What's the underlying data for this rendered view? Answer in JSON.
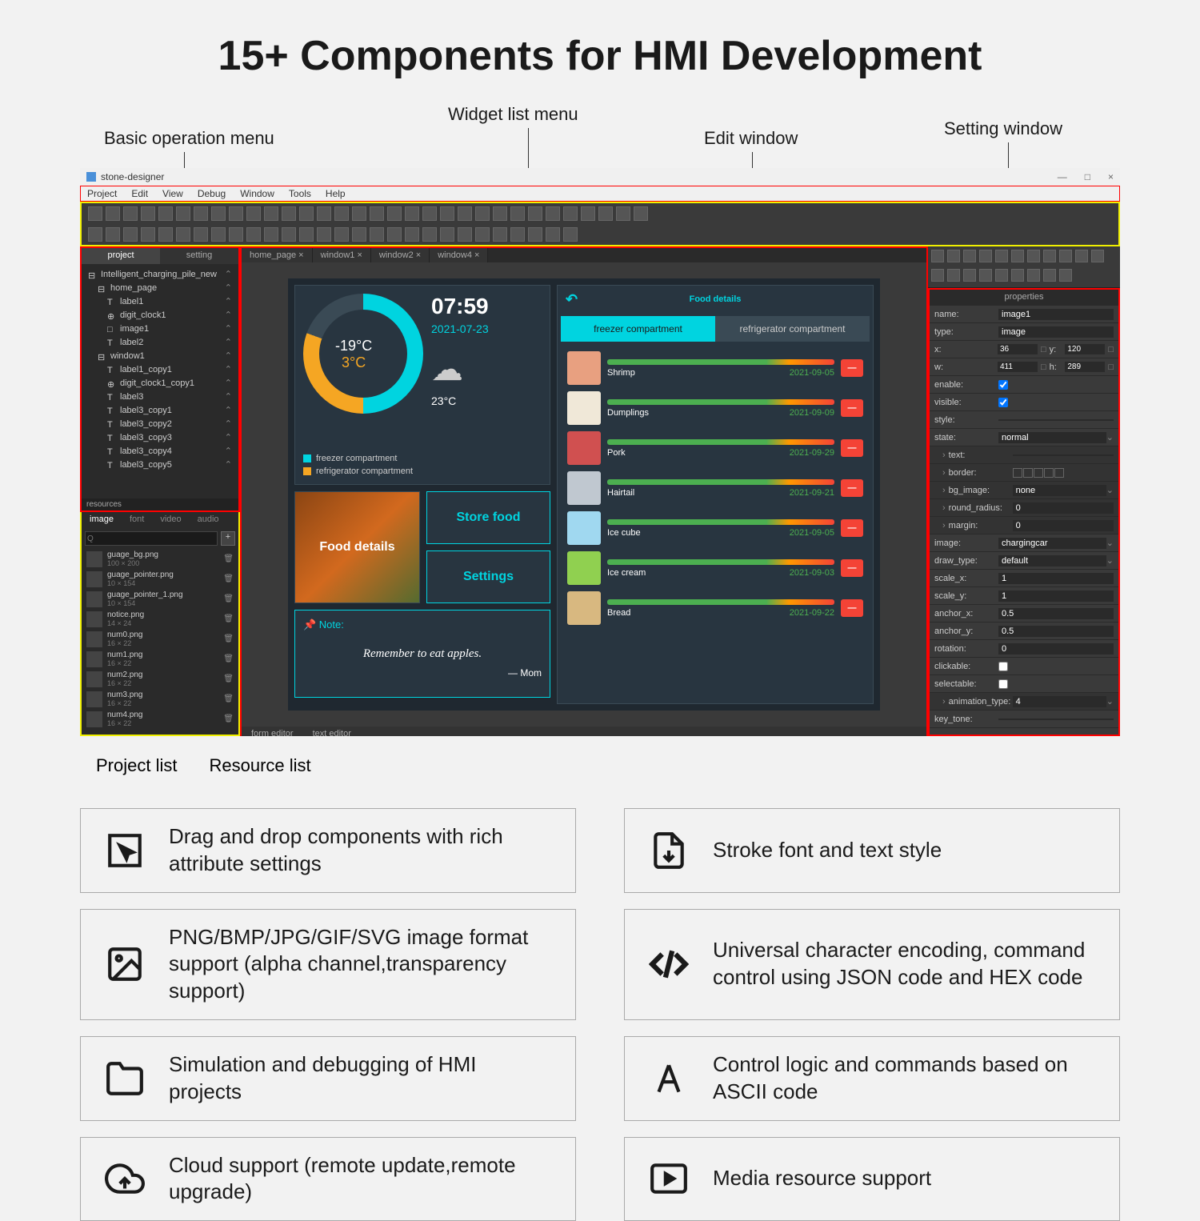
{
  "page_title": "15+ Components for HMI Development",
  "annotations": {
    "basic_op": "Basic operation menu",
    "widget_list": "Widget list menu",
    "edit_window": "Edit window",
    "setting_window": "Setting window",
    "project_list": "Project list",
    "resource_list": "Resource list"
  },
  "app": {
    "title": "stone-designer",
    "menus": [
      "Project",
      "Edit",
      "View",
      "Debug",
      "Window",
      "Tools",
      "Help"
    ]
  },
  "project_panel": {
    "tabs": [
      "project",
      "setting"
    ],
    "label_resources": "resources",
    "tree": [
      {
        "icon": "⊟",
        "label": "Intelligent_charging_pile_new",
        "indent": 0
      },
      {
        "icon": "⊟",
        "label": "home_page",
        "indent": 1
      },
      {
        "icon": "T",
        "label": "label1",
        "indent": 2
      },
      {
        "icon": "⊕",
        "label": "digit_clock1",
        "indent": 2
      },
      {
        "icon": "□",
        "label": "image1",
        "indent": 2
      },
      {
        "icon": "T",
        "label": "label2",
        "indent": 2
      },
      {
        "icon": "⊟",
        "label": "window1",
        "indent": 1
      },
      {
        "icon": "T",
        "label": "label1_copy1",
        "indent": 2
      },
      {
        "icon": "⊕",
        "label": "digit_clock1_copy1",
        "indent": 2
      },
      {
        "icon": "T",
        "label": "label3",
        "indent": 2
      },
      {
        "icon": "T",
        "label": "label3_copy1",
        "indent": 2
      },
      {
        "icon": "T",
        "label": "label3_copy2",
        "indent": 2
      },
      {
        "icon": "T",
        "label": "label3_copy3",
        "indent": 2
      },
      {
        "icon": "T",
        "label": "label3_copy4",
        "indent": 2
      },
      {
        "icon": "T",
        "label": "label3_copy5",
        "indent": 2
      }
    ]
  },
  "resource_panel": {
    "tabs": [
      "image",
      "font",
      "video",
      "audio"
    ],
    "search_placeholder": "Q",
    "items": [
      {
        "name": "guage_bg.png",
        "size": "100 × 200"
      },
      {
        "name": "guage_pointer.png",
        "size": "10 × 154"
      },
      {
        "name": "guage_pointer_1.png",
        "size": "10 × 154"
      },
      {
        "name": "notice.png",
        "size": "14 × 24"
      },
      {
        "name": "num0.png",
        "size": "16 × 22"
      },
      {
        "name": "num1.png",
        "size": "16 × 22"
      },
      {
        "name": "num2.png",
        "size": "16 × 22"
      },
      {
        "name": "num3.png",
        "size": "16 × 22"
      },
      {
        "name": "num4.png",
        "size": "16 × 22"
      }
    ]
  },
  "doc_tabs": [
    "home_page ×",
    "window1 ×",
    "window2 ×",
    "window4 ×"
  ],
  "bottom_tabs": [
    "form editor",
    "text editor"
  ],
  "hmi": {
    "gauge": {
      "temp1": "-19°C",
      "temp2": "3°C",
      "time": "07:59",
      "date": "2021-07-23",
      "weather_temp": "23°C"
    },
    "legend": [
      {
        "color": "#00d4e0",
        "label": "freezer compartment"
      },
      {
        "color": "#f5a623",
        "label": "refrigerator compartment"
      }
    ],
    "tiles": {
      "food_details": "Food details",
      "store_food": "Store food",
      "settings": "Settings"
    },
    "note": {
      "label": "📌 Note:",
      "text": "Remember to eat apples.",
      "sig": "— Mom"
    },
    "detail_title": "Food details",
    "comp_tabs": [
      "freezer compartment",
      "refrigerator compartment"
    ],
    "foods": [
      {
        "name": "Shrimp",
        "date": "2021-09-05",
        "color": "#e8a080"
      },
      {
        "name": "Dumplings",
        "date": "2021-09-09",
        "color": "#f0e8d8"
      },
      {
        "name": "Pork",
        "date": "2021-09-29",
        "color": "#d05050"
      },
      {
        "name": "Hairtail",
        "date": "2021-09-21",
        "color": "#c0c8d0"
      },
      {
        "name": "Ice cube",
        "date": "2021-09-05",
        "color": "#a0d8f0"
      },
      {
        "name": "Ice cream",
        "date": "2021-09-03",
        "color": "#90d050"
      },
      {
        "name": "Bread",
        "date": "2021-09-22",
        "color": "#d8b880"
      }
    ]
  },
  "properties": {
    "header": "properties",
    "rows": [
      {
        "label": "name:",
        "value": "image1",
        "type": "text"
      },
      {
        "label": "type:",
        "value": "image",
        "type": "text"
      },
      {
        "label": "x:",
        "value": "36",
        "label2": "y:",
        "value2": "120",
        "type": "xy"
      },
      {
        "label": "w:",
        "value": "411",
        "label2": "h:",
        "value2": "289",
        "type": "xy"
      },
      {
        "label": "enable:",
        "value": true,
        "type": "check"
      },
      {
        "label": "visible:",
        "value": true,
        "type": "check"
      },
      {
        "label": "style:",
        "value": "",
        "type": "text"
      },
      {
        "label": "state:",
        "value": "normal",
        "type": "dropdown"
      },
      {
        "label": "text:",
        "value": "",
        "type": "expand",
        "sub": true
      },
      {
        "label": "border:",
        "value": "",
        "type": "border",
        "sub": true
      },
      {
        "label": "bg_image:",
        "value": "none",
        "type": "dropdown",
        "sub": true
      },
      {
        "label": "round_radius:",
        "value": "0",
        "type": "text",
        "sub": true
      },
      {
        "label": "margin:",
        "value": "0",
        "type": "text",
        "sub": true
      },
      {
        "label": "image:",
        "value": "chargingcar",
        "type": "dropdown"
      },
      {
        "label": "draw_type:",
        "value": "default",
        "type": "dropdown"
      },
      {
        "label": "scale_x:",
        "value": "1",
        "type": "text"
      },
      {
        "label": "scale_y:",
        "value": "1",
        "type": "text"
      },
      {
        "label": "anchor_x:",
        "value": "0.5",
        "type": "text"
      },
      {
        "label": "anchor_y:",
        "value": "0.5",
        "type": "text"
      },
      {
        "label": "rotation:",
        "value": "0",
        "type": "text"
      },
      {
        "label": "clickable:",
        "value": false,
        "type": "check"
      },
      {
        "label": "selectable:",
        "value": false,
        "type": "check"
      },
      {
        "label": "animation_type:",
        "value": "4",
        "type": "dropdown",
        "sub": true
      },
      {
        "label": "key_tone:",
        "value": "",
        "type": "text"
      }
    ]
  },
  "features": [
    {
      "icon": "cursor",
      "text": "Drag and drop components with rich attribute settings"
    },
    {
      "icon": "file",
      "text": "Stroke font and text style"
    },
    {
      "icon": "image",
      "text": "PNG/BMP/JPG/GIF/SVG image format support (alpha channel,transparency support)"
    },
    {
      "icon": "code",
      "text": "Universal character encoding, command control using JSON code and HEX code"
    },
    {
      "icon": "folder",
      "text": "Simulation and debugging of HMI projects"
    },
    {
      "icon": "font",
      "text": "Control logic and commands based on ASCII code"
    },
    {
      "icon": "cloud",
      "text": "Cloud support (remote update,remote upgrade)"
    },
    {
      "icon": "play",
      "text": "Media resource support"
    }
  ]
}
